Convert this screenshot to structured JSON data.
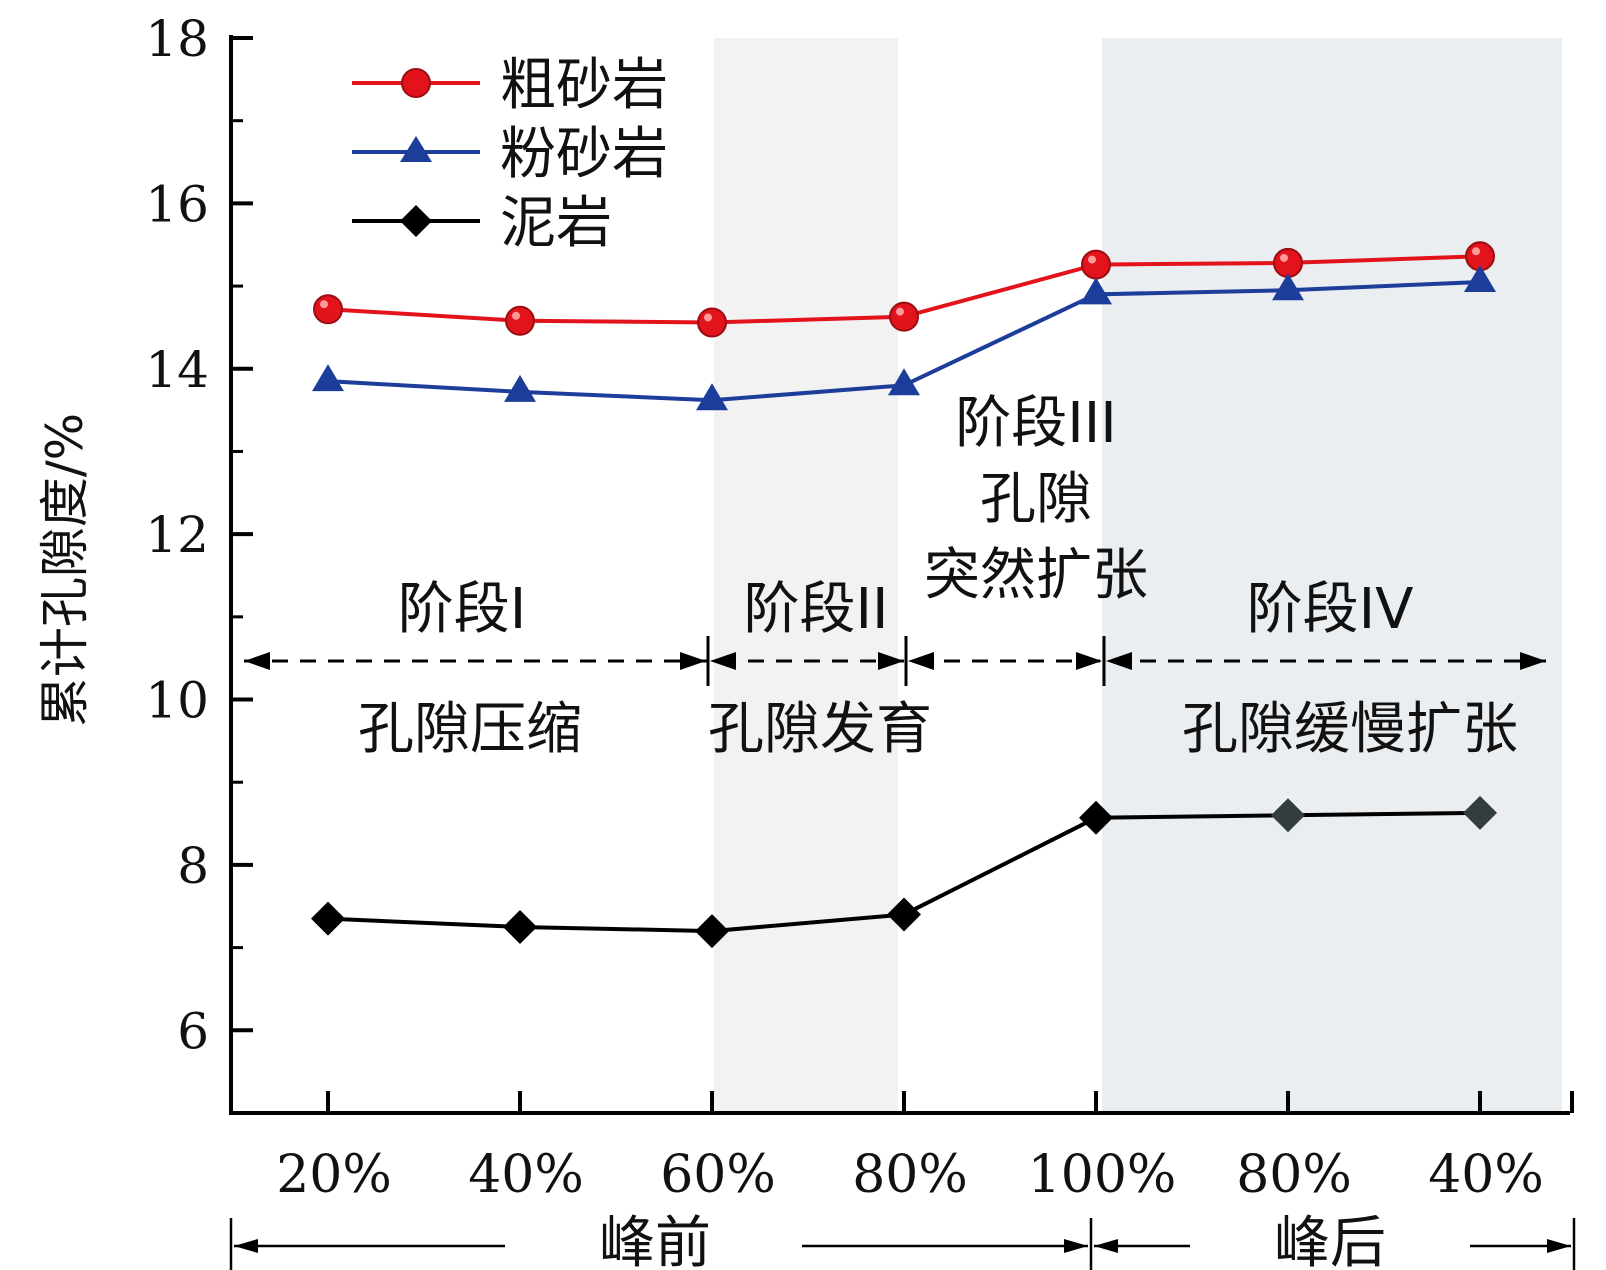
{
  "chart_data": {
    "type": "line",
    "ylabel": "累计孔隙度/%",
    "ylim": [
      5,
      18
    ],
    "yticks": [
      "6",
      "8",
      "10",
      "12",
      "14",
      "16",
      "18"
    ],
    "categories": [
      "20%",
      "40%",
      "60%",
      "80%",
      "100%",
      "80%",
      "40%"
    ],
    "phase_labels": {
      "pre": "峰前",
      "post": "峰后"
    },
    "series": [
      {
        "name": "粗砂岩",
        "color": "#e3131c",
        "marker": "circle",
        "values": [
          14.72,
          14.58,
          14.56,
          14.63,
          15.26,
          15.28,
          15.36
        ]
      },
      {
        "name": "粉砂岩",
        "color": "#1d3d9a",
        "marker": "triangle",
        "values": [
          13.85,
          13.72,
          13.62,
          13.8,
          14.9,
          14.95,
          15.05
        ]
      },
      {
        "name": "泥岩",
        "color": "#000000",
        "marker": "diamond",
        "values": [
          7.35,
          7.25,
          7.2,
          7.4,
          8.57,
          8.6,
          8.63
        ]
      }
    ],
    "stages": [
      {
        "title": "阶段I",
        "desc": "孔隙压缩"
      },
      {
        "title": "阶段II",
        "desc": "孔隙发育"
      },
      {
        "title": "阶段III",
        "desc_lines": [
          "孔隙",
          "突然扩张"
        ]
      },
      {
        "title": "阶段IV",
        "desc": "孔隙缓慢扩张"
      }
    ],
    "legend_position": "top-left",
    "grid": false
  }
}
